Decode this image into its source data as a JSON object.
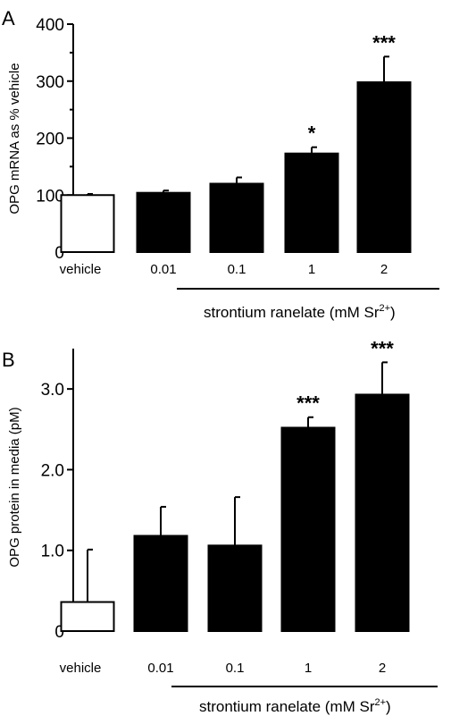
{
  "chart_data": [
    {
      "type": "bar",
      "panel_label": "A",
      "ylabel": "OPG mRNA as % vehicle",
      "categories": [
        "vehicle",
        "0.01",
        "0.1",
        "1",
        "2"
      ],
      "values": [
        100,
        104,
        120,
        173,
        298
      ],
      "errors": [
        2,
        4,
        11,
        11,
        45
      ],
      "significance": [
        "",
        "",
        "",
        "*",
        "***"
      ],
      "bar_colors": [
        "#ffffff",
        "#000000",
        "#000000",
        "#000000",
        "#000000"
      ],
      "ylim": [
        0,
        400
      ],
      "yticks": [
        0,
        100,
        200,
        300,
        400
      ],
      "ytick_labels": [
        "0",
        "100",
        "200",
        "300",
        "400"
      ],
      "group_label_main": "strontium ranelate (mM Sr",
      "group_label_sup": "2+",
      "group_label_end": ")",
      "grid": false
    },
    {
      "type": "bar",
      "panel_label": "B",
      "ylabel": "OPG protein in media (pM)",
      "categories": [
        "vehicle",
        "0.01",
        "0.1",
        "1",
        "2"
      ],
      "values": [
        0.36,
        1.18,
        1.06,
        2.52,
        2.93
      ],
      "errors": [
        0.65,
        0.36,
        0.6,
        0.13,
        0.4
      ],
      "significance": [
        "",
        "",
        "",
        "***",
        "***"
      ],
      "bar_colors": [
        "#ffffff",
        "#000000",
        "#000000",
        "#000000",
        "#000000"
      ],
      "ylim": [
        0,
        3.5
      ],
      "yticks": [
        0,
        1.0,
        2.0,
        3.0
      ],
      "ytick_labels": [
        "0",
        "1.0",
        "2.0",
        "3.0"
      ],
      "group_label_main": "strontium ranelate (mM Sr",
      "group_label_sup": "2+",
      "group_label_end": ")",
      "grid": false
    }
  ]
}
